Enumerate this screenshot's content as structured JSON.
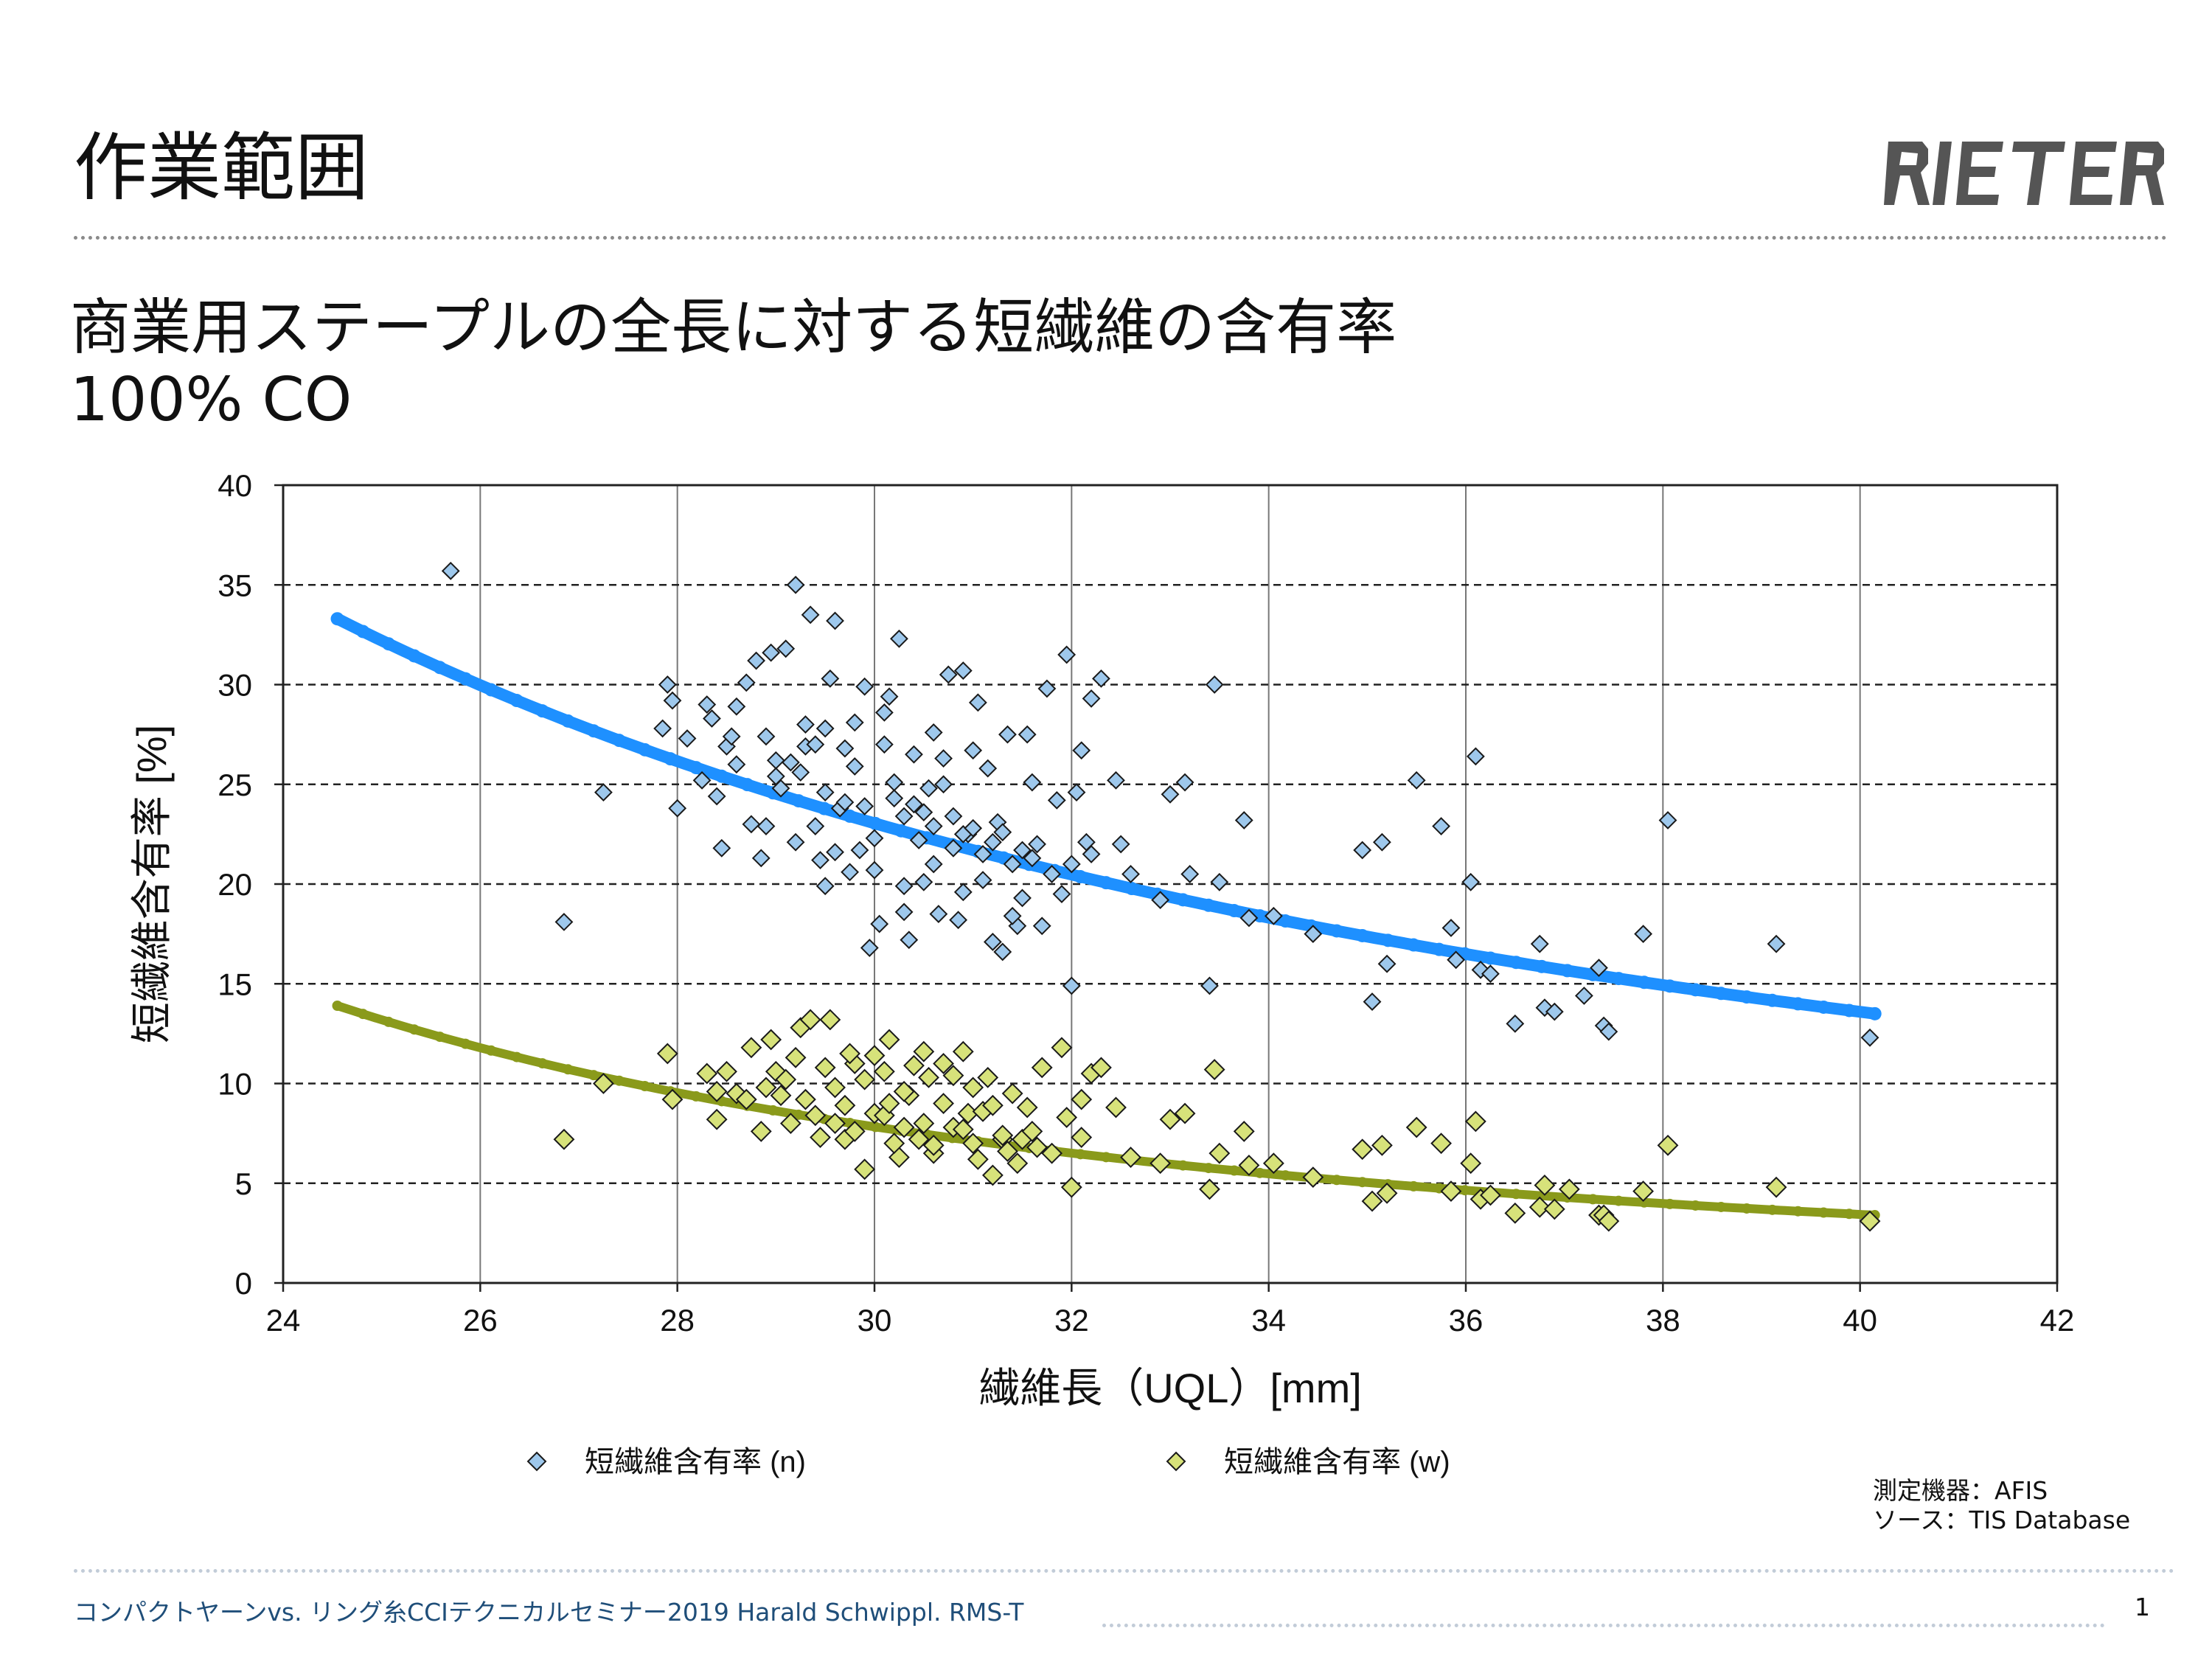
{
  "slide": {
    "title": "作業範囲",
    "logo_text": "RIETER",
    "subtitle_line1": "商業用ステープルの全長に対する短繊維の含有率",
    "subtitle_line2": "100% CO",
    "source_line1": "測定機器：AFIS",
    "source_line2": "ソース：TIS Database",
    "footer": "コンパクトヤーンvs. リング糸CCIテクニカルセミナー2019 Harald Schwippl. RMS-T",
    "page_number": "1"
  },
  "colors": {
    "series_n_fill": "#9ec8ec",
    "series_w_fill": "#d7e27a",
    "marker_stroke": "#1a1a1a",
    "trend_n": "#1e90ff",
    "trend_w": "#8a9a1b",
    "grid": "#777777",
    "footer_text": "#1f4e79"
  },
  "chart_data": {
    "type": "scatter",
    "xlabel": "繊維長（UQL）[mm]",
    "ylabel": "短繊維含有率 [%]",
    "xlim": [
      24,
      42
    ],
    "ylim": [
      0,
      40
    ],
    "x_ticks": [
      24,
      26,
      28,
      30,
      32,
      34,
      36,
      38,
      40,
      42
    ],
    "y_ticks": [
      0,
      5,
      10,
      15,
      20,
      25,
      30,
      35,
      40
    ],
    "grid": "vertical solid, horizontal dashed",
    "legend_position": "bottom",
    "series": [
      {
        "name": "短繊維含有率 (n)",
        "marker": "diamond",
        "points": [
          [
            25.7,
            35.7
          ],
          [
            26.85,
            18.1
          ],
          [
            27.25,
            24.6
          ],
          [
            27.85,
            27.8
          ],
          [
            27.9,
            30.0
          ],
          [
            27.95,
            29.2
          ],
          [
            28.0,
            23.8
          ],
          [
            28.1,
            27.3
          ],
          [
            28.25,
            25.2
          ],
          [
            28.3,
            29.0
          ],
          [
            28.35,
            28.3
          ],
          [
            28.4,
            24.4
          ],
          [
            28.45,
            21.8
          ],
          [
            28.5,
            26.9
          ],
          [
            28.55,
            27.4
          ],
          [
            28.6,
            28.9
          ],
          [
            28.7,
            30.1
          ],
          [
            28.75,
            23.0
          ],
          [
            28.8,
            31.2
          ],
          [
            28.85,
            21.3
          ],
          [
            28.9,
            22.9
          ],
          [
            28.95,
            31.6
          ],
          [
            29.0,
            26.2
          ],
          [
            29.05,
            24.8
          ],
          [
            29.1,
            31.8
          ],
          [
            29.15,
            26.1
          ],
          [
            29.2,
            35.0
          ],
          [
            29.25,
            25.6
          ],
          [
            29.3,
            28.0
          ],
          [
            29.35,
            33.5
          ],
          [
            29.4,
            22.9
          ],
          [
            29.45,
            21.2
          ],
          [
            29.5,
            19.9
          ],
          [
            29.5,
            27.8
          ],
          [
            29.55,
            30.3
          ],
          [
            29.6,
            33.2
          ],
          [
            29.65,
            23.8
          ],
          [
            29.7,
            26.8
          ],
          [
            29.75,
            20.6
          ],
          [
            29.8,
            28.1
          ],
          [
            29.85,
            21.7
          ],
          [
            29.9,
            29.9
          ],
          [
            29.95,
            16.8
          ],
          [
            30.0,
            20.7
          ],
          [
            30.05,
            18.0
          ],
          [
            30.1,
            27.0
          ],
          [
            30.15,
            29.4
          ],
          [
            30.2,
            25.1
          ],
          [
            30.25,
            32.3
          ],
          [
            30.3,
            18.6
          ],
          [
            30.35,
            17.2
          ],
          [
            30.4,
            26.5
          ],
          [
            30.45,
            22.2
          ],
          [
            30.5,
            20.1
          ],
          [
            30.55,
            24.8
          ],
          [
            30.6,
            27.6
          ],
          [
            30.65,
            18.5
          ],
          [
            30.7,
            25.0
          ],
          [
            30.75,
            30.5
          ],
          [
            30.8,
            21.8
          ],
          [
            30.85,
            18.2
          ],
          [
            30.9,
            30.7
          ],
          [
            30.95,
            22.5
          ],
          [
            31.0,
            26.7
          ],
          [
            31.05,
            29.1
          ],
          [
            31.1,
            21.5
          ],
          [
            31.15,
            25.8
          ],
          [
            31.2,
            17.1
          ],
          [
            31.25,
            23.1
          ],
          [
            31.3,
            16.6
          ],
          [
            31.35,
            27.5
          ],
          [
            31.4,
            21.0
          ],
          [
            31.45,
            17.9
          ],
          [
            31.5,
            19.3
          ],
          [
            31.55,
            27.5
          ],
          [
            31.6,
            25.1
          ],
          [
            31.65,
            22.0
          ],
          [
            31.7,
            17.9
          ],
          [
            31.75,
            29.8
          ],
          [
            31.8,
            20.5
          ],
          [
            31.85,
            24.2
          ],
          [
            31.9,
            19.5
          ],
          [
            31.95,
            31.5
          ],
          [
            32.0,
            14.9
          ],
          [
            32.05,
            24.6
          ],
          [
            32.1,
            26.7
          ],
          [
            32.15,
            22.1
          ],
          [
            32.2,
            29.3
          ],
          [
            32.3,
            30.3
          ],
          [
            32.45,
            25.2
          ],
          [
            32.5,
            22.0
          ],
          [
            32.6,
            20.5
          ],
          [
            32.9,
            19.2
          ],
          [
            33.0,
            24.5
          ],
          [
            33.15,
            25.1
          ],
          [
            33.2,
            20.5
          ],
          [
            33.4,
            14.9
          ],
          [
            33.45,
            30.0
          ],
          [
            33.5,
            20.1
          ],
          [
            33.75,
            23.2
          ],
          [
            33.8,
            18.3
          ],
          [
            34.05,
            18.4
          ],
          [
            34.45,
            17.5
          ],
          [
            34.95,
            21.7
          ],
          [
            35.05,
            14.1
          ],
          [
            35.15,
            22.1
          ],
          [
            35.2,
            16.0
          ],
          [
            35.5,
            25.2
          ],
          [
            35.75,
            22.9
          ],
          [
            35.85,
            17.8
          ],
          [
            35.9,
            16.2
          ],
          [
            36.05,
            20.1
          ],
          [
            36.1,
            26.4
          ],
          [
            36.15,
            15.7
          ],
          [
            36.25,
            15.5
          ],
          [
            36.5,
            13.0
          ],
          [
            36.75,
            17.0
          ],
          [
            36.8,
            13.8
          ],
          [
            36.9,
            13.6
          ],
          [
            37.2,
            14.4
          ],
          [
            37.35,
            15.8
          ],
          [
            37.4,
            12.9
          ],
          [
            37.45,
            12.6
          ],
          [
            37.8,
            17.5
          ],
          [
            38.05,
            23.2
          ],
          [
            39.15,
            17.0
          ],
          [
            40.1,
            12.3
          ],
          [
            28.6,
            26.0
          ],
          [
            29.0,
            25.4
          ],
          [
            29.5,
            24.6
          ],
          [
            29.9,
            23.9
          ],
          [
            30.3,
            23.4
          ],
          [
            30.6,
            22.9
          ],
          [
            30.9,
            22.5
          ],
          [
            31.2,
            22.1
          ],
          [
            31.5,
            21.7
          ],
          [
            29.7,
            24.1
          ],
          [
            30.2,
            24.3
          ],
          [
            30.5,
            23.6
          ],
          [
            31.0,
            22.8
          ],
          [
            28.9,
            27.4
          ],
          [
            29.3,
            26.9
          ],
          [
            29.8,
            25.9
          ],
          [
            30.4,
            24.0
          ],
          [
            30.8,
            23.4
          ],
          [
            31.3,
            22.6
          ],
          [
            31.6,
            21.3
          ],
          [
            32.0,
            21.0
          ],
          [
            30.0,
            22.3
          ],
          [
            30.6,
            21.0
          ],
          [
            31.1,
            20.2
          ],
          [
            29.6,
            21.6
          ],
          [
            30.3,
            19.9
          ],
          [
            31.4,
            18.4
          ],
          [
            32.2,
            21.5
          ],
          [
            29.4,
            27.0
          ],
          [
            30.1,
            28.6
          ],
          [
            30.7,
            26.3
          ],
          [
            29.2,
            22.1
          ],
          [
            30.9,
            19.6
          ]
        ]
      },
      {
        "name": "短繊維含有率 (w)",
        "marker": "diamond",
        "points": [
          [
            26.85,
            7.2
          ],
          [
            27.25,
            10.0
          ],
          [
            27.9,
            11.5
          ],
          [
            27.95,
            9.2
          ],
          [
            28.3,
            10.5
          ],
          [
            28.4,
            8.2
          ],
          [
            28.6,
            9.5
          ],
          [
            28.75,
            11.8
          ],
          [
            28.85,
            7.6
          ],
          [
            28.95,
            12.2
          ],
          [
            29.05,
            9.4
          ],
          [
            29.15,
            8.0
          ],
          [
            29.25,
            12.8
          ],
          [
            29.35,
            13.2
          ],
          [
            29.45,
            7.3
          ],
          [
            29.55,
            13.2
          ],
          [
            29.6,
            9.8
          ],
          [
            29.7,
            7.2
          ],
          [
            29.8,
            11.0
          ],
          [
            29.9,
            5.7
          ],
          [
            30.0,
            8.5
          ],
          [
            30.1,
            10.6
          ],
          [
            30.15,
            12.2
          ],
          [
            30.25,
            6.3
          ],
          [
            30.35,
            9.4
          ],
          [
            30.45,
            7.2
          ],
          [
            30.55,
            10.3
          ],
          [
            30.6,
            6.5
          ],
          [
            30.7,
            11.0
          ],
          [
            30.8,
            7.8
          ],
          [
            30.9,
            11.6
          ],
          [
            30.95,
            8.5
          ],
          [
            31.05,
            6.2
          ],
          [
            31.15,
            10.3
          ],
          [
            31.2,
            5.4
          ],
          [
            31.3,
            7.2
          ],
          [
            31.4,
            9.5
          ],
          [
            31.45,
            6.0
          ],
          [
            31.55,
            8.8
          ],
          [
            31.65,
            6.8
          ],
          [
            31.7,
            10.8
          ],
          [
            31.8,
            6.5
          ],
          [
            31.9,
            11.8
          ],
          [
            31.95,
            8.3
          ],
          [
            32.0,
            4.8
          ],
          [
            32.1,
            9.2
          ],
          [
            32.2,
            10.5
          ],
          [
            32.3,
            10.8
          ],
          [
            32.45,
            8.8
          ],
          [
            32.6,
            6.3
          ],
          [
            32.9,
            6.0
          ],
          [
            33.0,
            8.2
          ],
          [
            33.15,
            8.5
          ],
          [
            33.4,
            4.7
          ],
          [
            33.45,
            10.7
          ],
          [
            33.5,
            6.5
          ],
          [
            33.75,
            7.6
          ],
          [
            33.8,
            5.9
          ],
          [
            34.05,
            6.0
          ],
          [
            34.45,
            5.3
          ],
          [
            34.95,
            6.7
          ],
          [
            35.05,
            4.1
          ],
          [
            35.15,
            6.9
          ],
          [
            35.2,
            4.5
          ],
          [
            35.5,
            7.8
          ],
          [
            35.75,
            7.0
          ],
          [
            35.85,
            4.6
          ],
          [
            36.05,
            6.0
          ],
          [
            36.1,
            8.1
          ],
          [
            36.15,
            4.2
          ],
          [
            36.25,
            4.4
          ],
          [
            36.5,
            3.5
          ],
          [
            36.75,
            3.8
          ],
          [
            36.8,
            4.9
          ],
          [
            36.9,
            3.7
          ],
          [
            37.05,
            4.7
          ],
          [
            37.35,
            3.4
          ],
          [
            37.4,
            3.4
          ],
          [
            37.45,
            3.1
          ],
          [
            37.8,
            4.6
          ],
          [
            38.05,
            6.9
          ],
          [
            39.15,
            4.8
          ],
          [
            40.1,
            3.1
          ],
          [
            28.5,
            10.6
          ],
          [
            28.9,
            9.8
          ],
          [
            29.3,
            9.2
          ],
          [
            29.7,
            8.9
          ],
          [
            30.1,
            8.4
          ],
          [
            30.5,
            8.0
          ],
          [
            30.9,
            7.7
          ],
          [
            31.3,
            7.4
          ],
          [
            29.5,
            10.8
          ],
          [
            29.9,
            10.2
          ],
          [
            30.3,
            9.6
          ],
          [
            30.7,
            9.0
          ],
          [
            31.1,
            8.6
          ],
          [
            29.0,
            10.6
          ],
          [
            29.2,
            11.3
          ],
          [
            30.0,
            11.4
          ],
          [
            30.4,
            10.9
          ],
          [
            30.8,
            10.4
          ],
          [
            29.6,
            8.0
          ],
          [
            30.2,
            7.0
          ],
          [
            30.6,
            6.9
          ],
          [
            31.0,
            7.0
          ],
          [
            31.5,
            7.2
          ],
          [
            28.7,
            9.2
          ],
          [
            29.4,
            8.4
          ],
          [
            29.8,
            7.6
          ],
          [
            30.3,
            7.8
          ],
          [
            31.2,
            8.9
          ],
          [
            31.6,
            7.6
          ],
          [
            32.1,
            7.3
          ],
          [
            28.4,
            9.6
          ],
          [
            29.1,
            10.2
          ],
          [
            30.5,
            11.6
          ],
          [
            31.0,
            9.8
          ],
          [
            29.75,
            11.5
          ],
          [
            30.15,
            9.0
          ],
          [
            31.35,
            6.6
          ]
        ]
      }
    ],
    "trendlines": [
      {
        "series": "短繊維含有率 (n)",
        "x_start": 24.55,
        "x_end": 40.15,
        "y_start": 33.3,
        "y_end": 13.5
      },
      {
        "series": "短繊維含有率 (w)",
        "x_start": 24.55,
        "x_end": 40.15,
        "y_start": 13.9,
        "y_end": 3.4
      }
    ]
  }
}
